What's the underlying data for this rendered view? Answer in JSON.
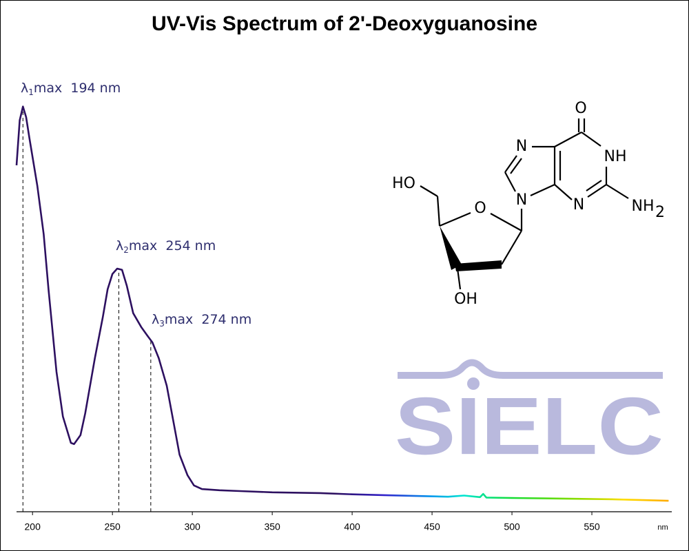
{
  "chart_data": {
    "type": "line",
    "title": "UV-Vis Spectrum of 2'-Deoxyguanosine",
    "x_label": "nm",
    "x": [
      190,
      192,
      194,
      196,
      198,
      203,
      207,
      210,
      215,
      219,
      224,
      226,
      230,
      233,
      239,
      244,
      247,
      250,
      253,
      256,
      259,
      263,
      268,
      272,
      275,
      279,
      284,
      288,
      292,
      297,
      301,
      306,
      317,
      330,
      350,
      380,
      400,
      420,
      440,
      460,
      470,
      480,
      482,
      484,
      500,
      520,
      540,
      560,
      580,
      598
    ],
    "values": [
      0.855,
      0.966,
      1.0,
      0.974,
      0.923,
      0.804,
      0.685,
      0.549,
      0.345,
      0.235,
      0.17,
      0.167,
      0.189,
      0.243,
      0.379,
      0.481,
      0.549,
      0.587,
      0.6,
      0.597,
      0.558,
      0.49,
      0.456,
      0.434,
      0.418,
      0.379,
      0.311,
      0.226,
      0.141,
      0.09,
      0.065,
      0.056,
      0.053,
      0.051,
      0.048,
      0.046,
      0.043,
      0.041,
      0.039,
      0.037,
      0.04,
      0.036,
      0.044,
      0.035,
      0.034,
      0.033,
      0.032,
      0.031,
      0.029,
      0.027
    ],
    "color": "#2d1060",
    "spectrum": [
      {
        "x": 390,
        "color": "#2d1060"
      },
      {
        "x": 420,
        "color": "#3322cc"
      },
      {
        "x": 450,
        "color": "#0099ee"
      },
      {
        "x": 470,
        "color": "#00e6d0"
      },
      {
        "x": 500,
        "color": "#11dd33"
      },
      {
        "x": 540,
        "color": "#88dd00"
      },
      {
        "x": 570,
        "color": "#ffdd00"
      },
      {
        "x": 598,
        "color": "#ffaa00"
      }
    ],
    "xlim": [
      190,
      600
    ],
    "ylim": [
      0,
      1.11
    ],
    "xticks": [
      200,
      250,
      300,
      350,
      400,
      450,
      500,
      550
    ],
    "annotations": [
      {
        "symbol": "λ",
        "sub": "1",
        "text": "max  194 nm",
        "x": 194
      },
      {
        "symbol": "λ",
        "sub": "2",
        "text": "max  254 nm",
        "x": 254
      },
      {
        "symbol": "λ",
        "sub": "3",
        "text": "max  274 nm",
        "x": 274
      }
    ],
    "structure_labels": [
      "O",
      "NH",
      "N",
      "NH",
      "2",
      "N",
      "N",
      "O",
      "HO",
      "OH"
    ],
    "watermark": "SIELC"
  }
}
